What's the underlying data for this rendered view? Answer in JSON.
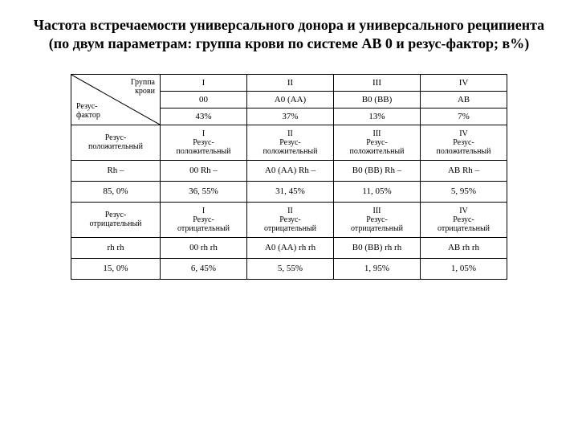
{
  "title": "Частота встречаемости универсального донора и универсального реципиента (по двум параметрам: группа крови по системе АВ 0 и резус-фактор; в%)",
  "diag": {
    "top": "Группа\nкрови",
    "bot": "Резус-\nфактор"
  },
  "h": {
    "c1r1": "I",
    "c2r1": "II",
    "c3r1": "III",
    "c4r1": "IV",
    "c1r2": "00",
    "c2r2": "А0 (АА)",
    "c3r2": "В0 (ВВ)",
    "c4r2": "АВ",
    "c1r3": "43%",
    "c2r3": "37%",
    "c3r3": "13%",
    "c4r3": "7%"
  },
  "r2": {
    "label": "Резус-\nположительный",
    "c1": "I\nРезус-\nположительный",
    "c2": "II\nРезус-\nположительный",
    "c3": "III\nРезус-\nположительный",
    "c4": "IV\nРезус-\nположительный"
  },
  "r3": {
    "label": "Rh –",
    "c1": "00 Rh –",
    "c2": "А0 (АА) Rh –",
    "c3": "В0 (ВВ) Rh –",
    "c4": "АВ Rh –"
  },
  "r4": {
    "label": "85, 0%",
    "c1": "36, 55%",
    "c2": "31, 45%",
    "c3": "11, 05%",
    "c4": "5, 95%"
  },
  "r5": {
    "label": "Резус-\nотрицательный",
    "c1": "I\nРезус-\nотрицательный",
    "c2": "II\nРезус-\nотрицательный",
    "c3": "III\nРезус-\nотрицательный",
    "c4": "IV\nРезус-\nотрицательный"
  },
  "r6": {
    "label": "rh rh",
    "c1": "00 rh rh",
    "c2": "А0 (АА) rh rh",
    "c3": "В0 (ВВ) rh rh",
    "c4": "АВ rh rh"
  },
  "r7": {
    "label": "15, 0%",
    "c1": "6, 45%",
    "c2": "5, 55%",
    "c3": "1, 95%",
    "c4": "1, 05%"
  }
}
